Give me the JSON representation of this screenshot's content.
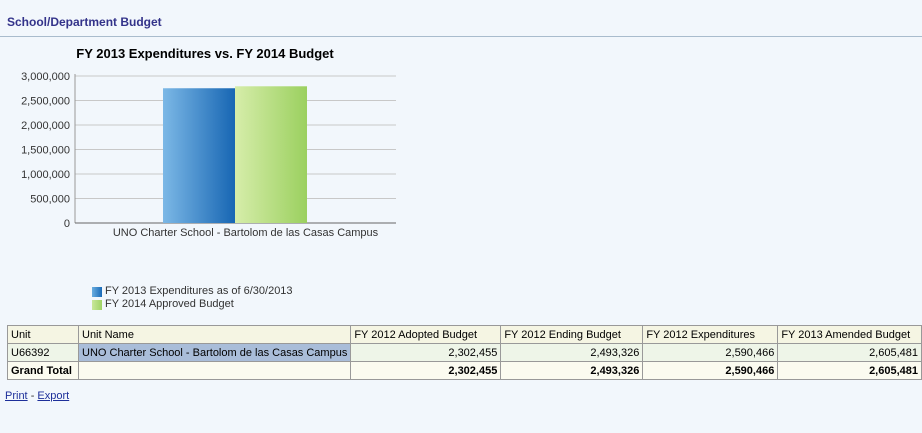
{
  "section": {
    "title": "School/Department Budget"
  },
  "chart_data": {
    "type": "bar",
    "title": "FY 2013 Expenditures vs. FY 2014 Budget",
    "categories": [
      "UNO Charter School - Bartolom de las Casas Campus"
    ],
    "series": [
      {
        "name": "FY 2013 Expenditures as of 6/30/2013",
        "values": [
          2750000
        ],
        "color": "#1a6bb8"
      },
      {
        "name": "FY 2014 Approved Budget",
        "values": [
          2790000
        ],
        "color": "#9fd365"
      }
    ],
    "yticks": [
      "0",
      "500,000",
      "1,000,000",
      "1,500,000",
      "2,000,000",
      "2,500,000",
      "3,000,000"
    ],
    "ylim": [
      0,
      3000000
    ],
    "grid": true,
    "legend": "bottom-left"
  },
  "table": {
    "headers": [
      "Unit",
      "Unit Name",
      "FY 2012 Adopted Budget",
      "FY 2012 Ending Budget",
      "FY 2012 Expenditures",
      "FY 2013 Amended Budget"
    ],
    "rows": [
      [
        "U66392",
        "UNO Charter School - Bartolom de las Casas Campus",
        "2,302,455",
        "2,493,326",
        "2,590,466",
        "2,605,481"
      ]
    ],
    "total": [
      "Grand Total",
      "",
      "2,302,455",
      "2,493,326",
      "2,590,466",
      "2,605,481"
    ]
  },
  "links": {
    "print": "Print",
    "separator": "-",
    "export": "Export"
  }
}
